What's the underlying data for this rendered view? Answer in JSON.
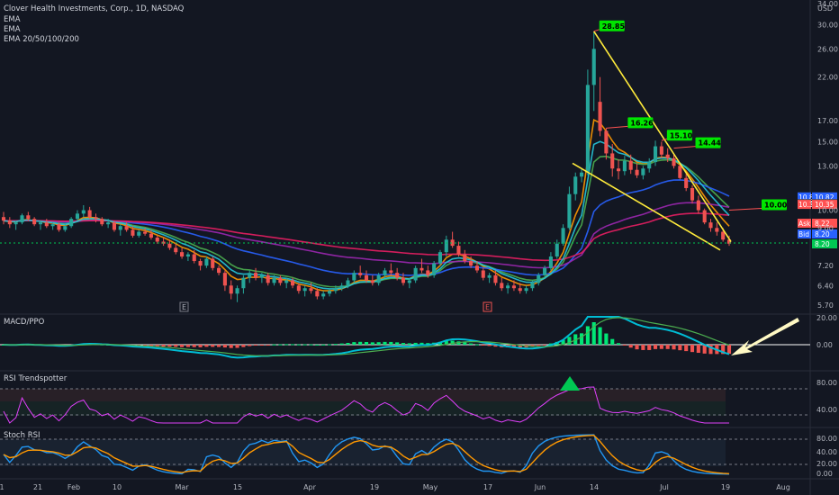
{
  "chart_data": {
    "type": "candlestick",
    "title": "Clover Health Investments, Corp., 1D, NASDAQ",
    "indicators": [
      "EMA",
      "EMA",
      "EMA 20/50/100/200"
    ],
    "currency_label": "USD",
    "y_ticks": [
      "34.00",
      "30.00",
      "26.00",
      "22.00",
      "17.00",
      "15.00",
      "13.00",
      "10.00",
      "9.00",
      "7.20",
      "6.40",
      "5.70"
    ],
    "x_ticks": [
      "1",
      "21",
      "Feb",
      "10",
      "Mar",
      "15",
      "Apr",
      "19",
      "May",
      "17",
      "Jun",
      "14",
      "Jul",
      "19",
      "Aug"
    ],
    "earnings_markers": [
      "E",
      "E"
    ],
    "annotations": [
      {
        "label": "28.85",
        "color": "#00e600"
      },
      {
        "label": "16.26",
        "color": "#00e600"
      },
      {
        "label": "15.10",
        "color": "#00e600"
      },
      {
        "label": "14.44",
        "color": "#00e600"
      },
      {
        "label": "10.00",
        "color": "#00e600"
      }
    ],
    "price_tags": [
      {
        "label": "10.82",
        "color": "#2962ff"
      },
      {
        "label": "10.40",
        "color": "#434651"
      },
      {
        "label": "10.35",
        "color": "#ff5252"
      },
      {
        "label": "Ask",
        "value": "8.22",
        "color": "#ff5252"
      },
      {
        "label": "Bid",
        "value": "8.20",
        "color": "#2962ff"
      },
      {
        "label": "",
        "value": "8.20",
        "color": "#00c853"
      }
    ],
    "candles": [
      [
        9.6,
        9.9,
        9.2,
        9.4
      ],
      [
        9.4,
        9.6,
        9.0,
        9.2
      ],
      [
        9.2,
        9.4,
        8.9,
        9.3
      ],
      [
        9.3,
        9.8,
        9.2,
        9.7
      ],
      [
        9.7,
        9.9,
        9.4,
        9.5
      ],
      [
        9.5,
        9.6,
        9.1,
        9.2
      ],
      [
        9.2,
        9.4,
        8.9,
        9.3
      ],
      [
        9.3,
        9.5,
        9.0,
        9.1
      ],
      [
        9.1,
        9.3,
        8.9,
        9.2
      ],
      [
        9.2,
        9.3,
        8.8,
        8.9
      ],
      [
        8.9,
        9.2,
        8.8,
        9.1
      ],
      [
        9.1,
        9.6,
        9.0,
        9.5
      ],
      [
        9.5,
        10.0,
        9.4,
        9.8
      ],
      [
        9.8,
        10.3,
        9.6,
        10.0
      ],
      [
        10.0,
        10.2,
        9.5,
        9.6
      ],
      [
        9.6,
        9.8,
        9.3,
        9.5
      ],
      [
        9.5,
        9.6,
        9.1,
        9.2
      ],
      [
        9.2,
        9.5,
        9.0,
        9.3
      ],
      [
        9.3,
        9.4,
        8.8,
        8.9
      ],
      [
        8.9,
        9.2,
        8.6,
        9.1
      ],
      [
        9.1,
        9.3,
        8.8,
        8.9
      ],
      [
        8.9,
        9.1,
        8.5,
        8.6
      ],
      [
        8.6,
        8.9,
        8.5,
        8.8
      ],
      [
        8.8,
        9.0,
        8.6,
        8.7
      ],
      [
        8.7,
        8.9,
        8.4,
        8.5
      ],
      [
        8.5,
        8.6,
        8.2,
        8.3
      ],
      [
        8.3,
        8.5,
        8.1,
        8.2
      ],
      [
        8.2,
        8.4,
        7.9,
        8.0
      ],
      [
        8.0,
        8.2,
        7.7,
        7.8
      ],
      [
        7.8,
        8.0,
        7.5,
        7.6
      ],
      [
        7.6,
        7.8,
        7.4,
        7.7
      ],
      [
        7.7,
        7.9,
        7.3,
        7.4
      ],
      [
        7.4,
        7.5,
        7.0,
        7.2
      ],
      [
        7.2,
        7.6,
        7.1,
        7.5
      ],
      [
        7.5,
        7.6,
        7.0,
        7.1
      ],
      [
        7.1,
        7.2,
        6.8,
        6.9
      ],
      [
        6.9,
        7.0,
        6.2,
        6.4
      ],
      [
        6.4,
        6.6,
        5.9,
        6.1
      ],
      [
        6.1,
        6.4,
        5.8,
        6.3
      ],
      [
        6.3,
        6.8,
        6.1,
        6.7
      ],
      [
        6.7,
        7.0,
        6.5,
        6.9
      ],
      [
        6.9,
        7.1,
        6.6,
        6.7
      ],
      [
        6.7,
        6.9,
        6.5,
        6.8
      ],
      [
        6.8,
        6.9,
        6.4,
        6.5
      ],
      [
        6.5,
        6.8,
        6.4,
        6.7
      ],
      [
        6.7,
        6.8,
        6.4,
        6.5
      ],
      [
        6.5,
        6.7,
        6.3,
        6.6
      ],
      [
        6.6,
        6.7,
        6.3,
        6.4
      ],
      [
        6.4,
        6.5,
        6.1,
        6.2
      ],
      [
        6.2,
        6.4,
        6.0,
        6.3
      ],
      [
        6.3,
        6.5,
        6.1,
        6.2
      ],
      [
        6.2,
        6.3,
        5.9,
        6.0
      ],
      [
        6.0,
        6.2,
        5.9,
        6.1
      ],
      [
        6.1,
        6.3,
        6.0,
        6.2
      ],
      [
        6.2,
        6.4,
        6.1,
        6.3
      ],
      [
        6.3,
        6.5,
        6.2,
        6.4
      ],
      [
        6.4,
        6.7,
        6.3,
        6.6
      ],
      [
        6.6,
        7.0,
        6.5,
        6.9
      ],
      [
        6.9,
        7.2,
        6.7,
        6.8
      ],
      [
        6.8,
        7.0,
        6.5,
        6.6
      ],
      [
        6.6,
        6.8,
        6.4,
        6.5
      ],
      [
        6.5,
        6.9,
        6.4,
        6.8
      ],
      [
        6.8,
        7.1,
        6.7,
        7.0
      ],
      [
        7.0,
        7.3,
        6.8,
        6.9
      ],
      [
        6.9,
        7.1,
        6.6,
        6.7
      ],
      [
        6.7,
        6.9,
        6.4,
        6.5
      ],
      [
        6.5,
        6.7,
        6.3,
        6.6
      ],
      [
        6.6,
        7.2,
        6.5,
        7.1
      ],
      [
        7.1,
        7.5,
        6.9,
        7.0
      ],
      [
        7.0,
        7.2,
        6.7,
        6.8
      ],
      [
        6.8,
        7.4,
        6.7,
        7.3
      ],
      [
        7.3,
        7.9,
        7.2,
        7.8
      ],
      [
        7.8,
        8.6,
        7.6,
        8.4
      ],
      [
        8.4,
        8.8,
        8.0,
        8.1
      ],
      [
        8.1,
        8.3,
        7.6,
        7.7
      ],
      [
        7.7,
        7.9,
        7.3,
        7.4
      ],
      [
        7.4,
        7.6,
        7.1,
        7.2
      ],
      [
        7.2,
        7.4,
        6.9,
        7.0
      ],
      [
        7.0,
        7.1,
        6.6,
        6.7
      ],
      [
        6.7,
        6.9,
        6.5,
        6.8
      ],
      [
        6.8,
        7.0,
        6.4,
        6.5
      ],
      [
        6.5,
        6.7,
        6.2,
        6.3
      ],
      [
        6.3,
        6.5,
        6.1,
        6.4
      ],
      [
        6.4,
        6.6,
        6.2,
        6.3
      ],
      [
        6.3,
        6.5,
        6.1,
        6.2
      ],
      [
        6.2,
        6.4,
        6.1,
        6.3
      ],
      [
        6.3,
        6.6,
        6.2,
        6.5
      ],
      [
        6.5,
        6.9,
        6.4,
        6.8
      ],
      [
        6.8,
        7.2,
        6.7,
        7.1
      ],
      [
        7.1,
        7.8,
        7.0,
        7.6
      ],
      [
        7.6,
        8.4,
        7.5,
        8.2
      ],
      [
        8.2,
        9.2,
        8.1,
        9.0
      ],
      [
        9.0,
        11.5,
        8.9,
        11.0
      ],
      [
        11.0,
        12.5,
        10.6,
        12.2
      ],
      [
        12.2,
        12.8,
        11.8,
        12.5
      ],
      [
        12.5,
        23.0,
        12.3,
        21.0
      ],
      [
        21.0,
        28.85,
        18.0,
        26.0
      ],
      [
        19.0,
        22.0,
        15.5,
        16.0
      ],
      [
        16.0,
        16.26,
        13.5,
        14.0
      ],
      [
        14.0,
        14.8,
        12.2,
        12.8
      ],
      [
        12.8,
        13.5,
        12.0,
        12.6
      ],
      [
        12.6,
        13.8,
        12.3,
        13.4
      ],
      [
        13.4,
        13.9,
        12.4,
        12.7
      ],
      [
        12.7,
        13.2,
        12.1,
        12.3
      ],
      [
        12.3,
        13.0,
        12.0,
        12.8
      ],
      [
        12.8,
        13.6,
        12.5,
        13.3
      ],
      [
        13.3,
        15.1,
        13.0,
        14.6
      ],
      [
        14.6,
        15.0,
        13.6,
        13.9
      ],
      [
        13.9,
        14.44,
        13.3,
        13.6
      ],
      [
        13.6,
        13.9,
        12.8,
        13.0
      ],
      [
        13.0,
        13.2,
        12.0,
        12.1
      ],
      [
        12.1,
        12.4,
        11.2,
        11.4
      ],
      [
        11.4,
        11.6,
        10.4,
        10.6
      ],
      [
        10.6,
        10.9,
        9.8,
        10.0
      ],
      [
        10.0,
        10.1,
        9.2,
        9.3
      ],
      [
        9.3,
        9.5,
        8.8,
        9.0
      ],
      [
        9.0,
        9.3,
        8.6,
        8.8
      ],
      [
        8.8,
        9.0,
        8.3,
        8.4
      ],
      [
        8.4,
        8.6,
        8.1,
        8.2
      ]
    ],
    "ema_lines": [
      {
        "name": "EMA 20",
        "color": "#ff9800"
      },
      {
        "name": "EMA 50",
        "color": "#4caf50"
      },
      {
        "name": "EMA 100",
        "color": "#2962ff"
      },
      {
        "name": "EMA 200",
        "color": "#9c27b0"
      },
      {
        "name": "EMA",
        "color": "#e91e63"
      },
      {
        "name": "EMA",
        "color": "#26c6da"
      }
    ],
    "panels": [
      {
        "name": "MACD/PPO",
        "y_ticks": [
          "20.00",
          "0.00"
        ]
      },
      {
        "name": "RSI Trendspotter",
        "y_ticks": [
          "80.00",
          "40.00"
        ]
      },
      {
        "name": "Stoch RSI",
        "y_ticks": [
          "80.00",
          "40.00",
          "20.00",
          "0.00"
        ]
      }
    ],
    "colors": {
      "up": "#26a69a",
      "up_bright": "#00e676",
      "down": "#ef5350",
      "trendline": "#ffeb3b",
      "background": "#131722"
    }
  }
}
